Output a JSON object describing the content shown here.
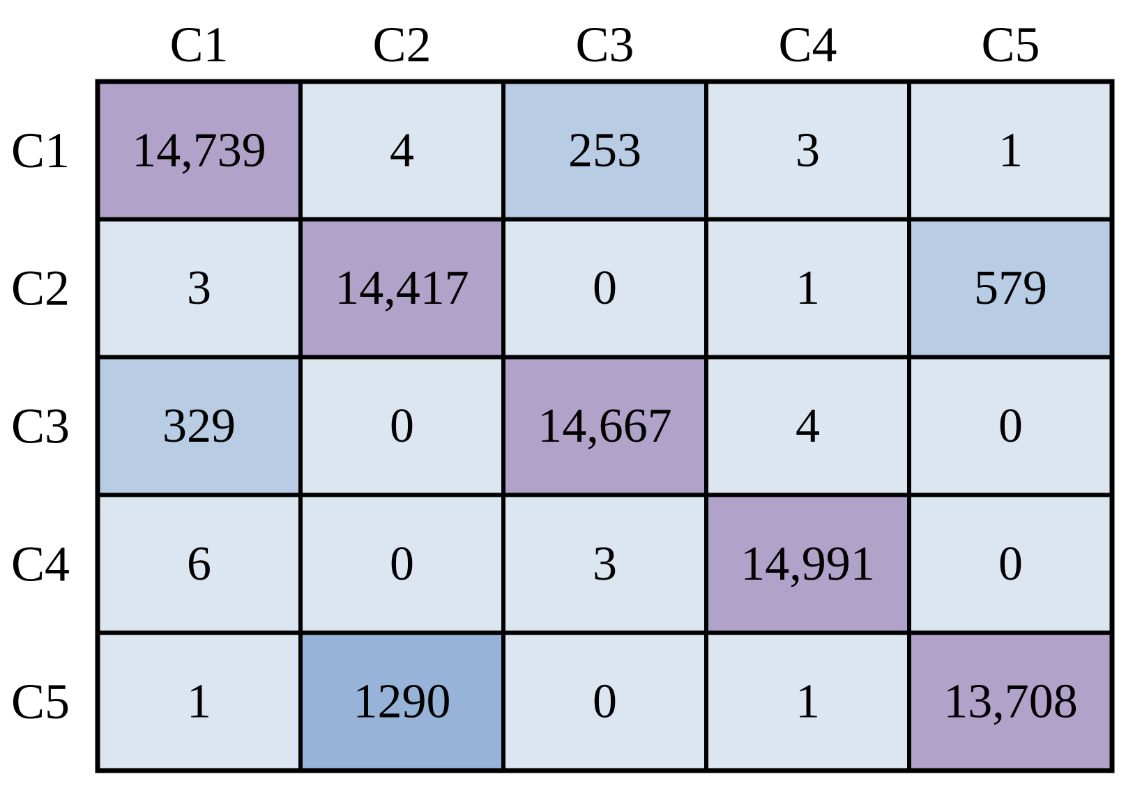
{
  "chart_data": {
    "type": "heatmap",
    "title": "",
    "xlabel": "",
    "ylabel": "",
    "column_labels": [
      "C1",
      "C2",
      "C3",
      "C4",
      "C5"
    ],
    "row_labels": [
      "C1",
      "C2",
      "C3",
      "C4",
      "C5"
    ],
    "values": [
      [
        14739,
        4,
        253,
        3,
        1
      ],
      [
        3,
        14417,
        0,
        1,
        579
      ],
      [
        329,
        0,
        14667,
        4,
        0
      ],
      [
        6,
        0,
        3,
        14991,
        0
      ],
      [
        1,
        1290,
        0,
        1,
        13708
      ]
    ],
    "display_values": [
      [
        "14,739",
        "4",
        "253",
        "3",
        "1"
      ],
      [
        "3",
        "14,417",
        "0",
        "1",
        "579"
      ],
      [
        "329",
        "0",
        "14,667",
        "4",
        "0"
      ],
      [
        "6",
        "0",
        "3",
        "14,991",
        "0"
      ],
      [
        "1",
        "1290",
        "0",
        "1",
        "13,708"
      ]
    ],
    "colors": {
      "diagonal": "#b0a2c9",
      "high_off_diagonal": "#97b4d8",
      "medium_off_diagonal": "#b8cce4",
      "low": "#dce6f1",
      "grid": "#000000"
    },
    "legend": "none",
    "grid": true
  }
}
